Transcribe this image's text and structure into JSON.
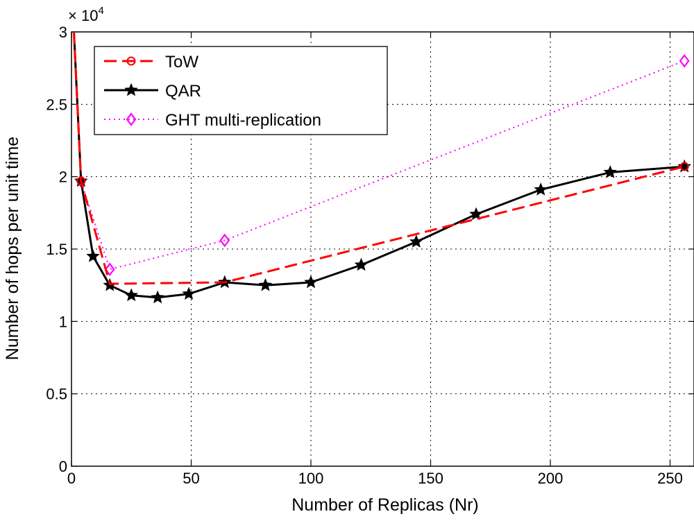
{
  "chart_data": {
    "type": "line",
    "xlabel": "Number of Replicas (Nr)",
    "ylabel": "Number of hops per unit time",
    "y_multiplier": "× 10",
    "y_exponent": "4",
    "xlim": [
      0,
      260
    ],
    "ylim": [
      0,
      3
    ],
    "xticks": [
      0,
      50,
      100,
      150,
      200,
      250
    ],
    "yticks": [
      0,
      0.5,
      1,
      1.5,
      2,
      2.5,
      3
    ],
    "xtick_labels": [
      "0",
      "50",
      "100",
      "150",
      "200",
      "250"
    ],
    "ytick_labels": [
      "0",
      "0.5",
      "1",
      "1.5",
      "2",
      "2.5",
      "3"
    ],
    "grid": true,
    "legend_position": "top-left",
    "series": [
      {
        "name": "ToW",
        "color": "#ff0000",
        "style": "dashed",
        "marker": "circle",
        "x": [
          1,
          4,
          16,
          64,
          256
        ],
        "y": [
          3.0,
          1.97,
          1.26,
          1.27,
          2.07
        ],
        "marker_x": [
          4,
          256
        ],
        "marker_y": [
          1.97,
          2.07
        ]
      },
      {
        "name": "QAR",
        "color": "#000000",
        "style": "solid",
        "marker": "star",
        "x": [
          1,
          4,
          9,
          16,
          25,
          36,
          49,
          64,
          81,
          100,
          121,
          144,
          169,
          196,
          225,
          256
        ],
        "y": [
          3.0,
          1.97,
          1.45,
          1.25,
          1.18,
          1.165,
          1.19,
          1.27,
          1.25,
          1.27,
          1.39,
          1.55,
          1.74,
          1.91,
          2.03,
          2.07
        ],
        "marker_x": [
          4,
          9,
          16,
          25,
          36,
          49,
          64,
          81,
          100,
          121,
          144,
          169,
          196,
          225,
          256
        ],
        "marker_y": [
          1.97,
          1.45,
          1.25,
          1.18,
          1.165,
          1.19,
          1.27,
          1.25,
          1.27,
          1.39,
          1.55,
          1.74,
          1.91,
          2.03,
          2.07
        ]
      },
      {
        "name": "GHT multi-replication",
        "color": "#ff00ff",
        "style": "dotted",
        "marker": "diamond",
        "x": [
          1,
          4,
          16,
          64,
          256
        ],
        "y": [
          3.0,
          1.97,
          1.36,
          1.56,
          2.8
        ],
        "marker_x": [
          4,
          16,
          64,
          256
        ],
        "marker_y": [
          1.97,
          1.36,
          1.56,
          2.8
        ]
      }
    ]
  }
}
